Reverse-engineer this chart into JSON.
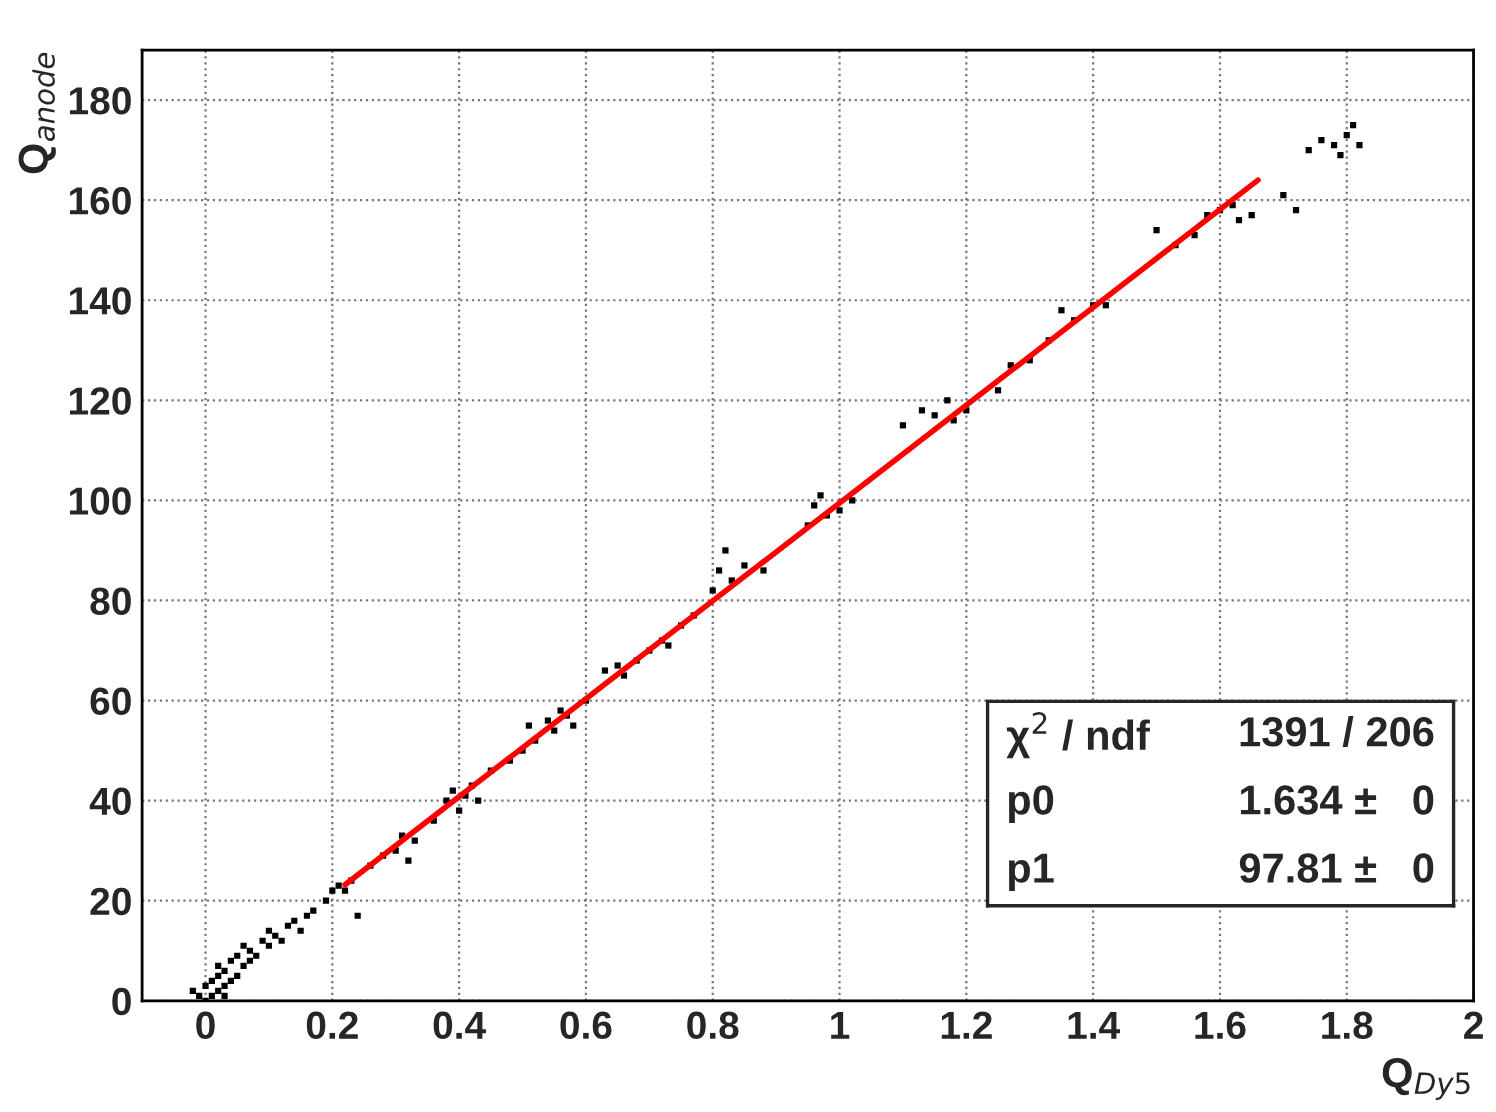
{
  "chart_data": {
    "type": "scatter",
    "xlabel": "Q$_{Dy5}$",
    "ylabel": "Q$_{anode}$",
    "xlim": [
      -0.1,
      2
    ],
    "ylim": [
      0,
      190
    ],
    "xticks": [
      0,
      0.2,
      0.4,
      0.6,
      0.8,
      1,
      1.2,
      1.4,
      1.6,
      1.8,
      2
    ],
    "yticks": [
      0,
      20,
      40,
      60,
      80,
      100,
      120,
      140,
      160,
      180
    ],
    "grid": true,
    "legend": false,
    "series": [
      {
        "color": "#000000",
        "marker": "square",
        "x": [
          -0.02,
          -0.01,
          0.0,
          0.0,
          0.01,
          0.01,
          0.02,
          0.02,
          0.02,
          0.03,
          0.03,
          0.03,
          0.04,
          0.04,
          0.05,
          0.05,
          0.06,
          0.06,
          0.07,
          0.07,
          0.08,
          0.09,
          0.1,
          0.1,
          0.11,
          0.12,
          0.13,
          0.14,
          0.15,
          0.16,
          0.17,
          0.19,
          0.2,
          0.21,
          0.22,
          0.23,
          0.24,
          0.26,
          0.28,
          0.3,
          0.31,
          0.32,
          0.33,
          0.36,
          0.38,
          0.39,
          0.4,
          0.41,
          0.42,
          0.43,
          0.45,
          0.48,
          0.5,
          0.51,
          0.52,
          0.54,
          0.55,
          0.56,
          0.57,
          0.58,
          0.6,
          0.63,
          0.65,
          0.66,
          0.68,
          0.7,
          0.72,
          0.73,
          0.75,
          0.77,
          0.8,
          0.81,
          0.82,
          0.83,
          0.85,
          0.88,
          0.95,
          0.96,
          0.97,
          0.98,
          1.0,
          1.02,
          1.1,
          1.13,
          1.15,
          1.17,
          1.18,
          1.2,
          1.25,
          1.27,
          1.3,
          1.33,
          1.35,
          1.37,
          1.4,
          1.42,
          1.5,
          1.53,
          1.56,
          1.58,
          1.6,
          1.62,
          1.63,
          1.65,
          1.7,
          1.72,
          1.74,
          1.76,
          1.78,
          1.79,
          1.8,
          1.81,
          1.82
        ],
        "values": [
          2,
          1,
          0,
          3,
          1,
          4,
          2,
          5,
          7,
          1,
          3,
          6,
          4,
          8,
          5,
          9,
          7,
          11,
          8,
          10,
          9,
          12,
          11,
          14,
          13,
          12,
          15,
          16,
          14,
          17,
          18,
          20,
          22,
          23,
          22,
          24,
          17,
          27,
          29,
          30,
          33,
          28,
          32,
          36,
          40,
          42,
          38,
          41,
          43,
          40,
          46,
          48,
          50,
          55,
          52,
          56,
          54,
          58,
          57,
          55,
          60,
          66,
          67,
          65,
          68,
          70,
          72,
          71,
          75,
          77,
          82,
          86,
          90,
          84,
          87,
          86,
          95,
          99,
          101,
          97,
          98,
          100,
          115,
          118,
          117,
          120,
          116,
          118,
          122,
          127,
          128,
          132,
          138,
          136,
          139,
          139,
          154,
          151,
          153,
          157,
          158,
          159,
          156,
          157,
          161,
          158,
          170,
          172,
          171,
          169,
          173,
          175,
          171
        ]
      },
      {
        "type": "line",
        "color": "#ff0000",
        "x": [
          0.22,
          1.66
        ],
        "values": [
          23.2,
          164
        ]
      }
    ],
    "annotations": [
      "χ$^{2}$ / ndf",
      "1391 / 206",
      "p0",
      "1.634 ±   0",
      "p1",
      "97.81 ±   0"
    ]
  }
}
